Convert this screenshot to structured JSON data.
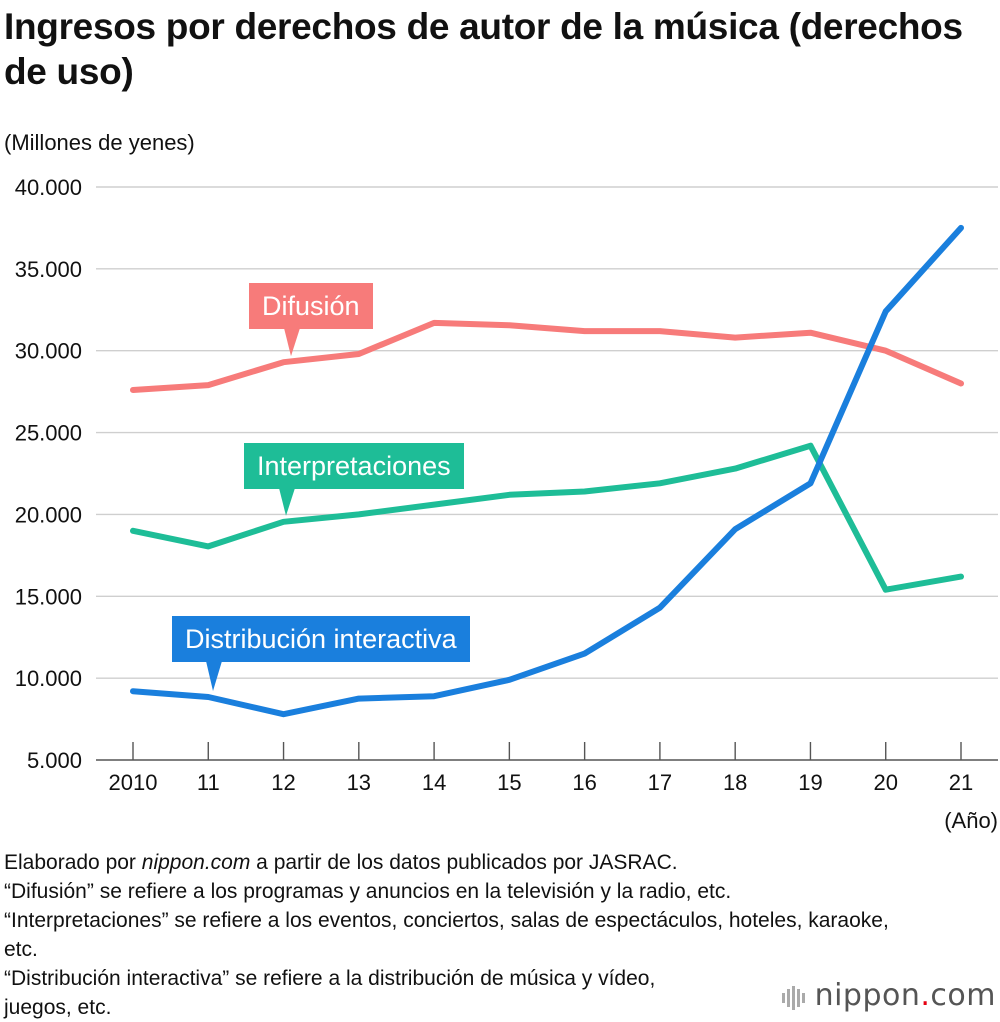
{
  "title": "Ingresos por derechos de autor de la música (derechos de uso)",
  "unit_label": "(Millones de yenes)",
  "notes": {
    "source_pre": "Elaborado por ",
    "source_site": "nippon.com",
    "source_post": " a partir de los datos publicados por JASRAC.",
    "line2": "“Difusión” se refiere a los programas y anuncios en la televisión y la radio, etc.",
    "line3": "“Interpretaciones” se refiere a los eventos, conciertos, salas de espectáculos, hoteles, karaoke, etc.",
    "line4": "“Distribución interactiva” se refiere a la distribución de música y vídeo, juegos, etc."
  },
  "logo": {
    "text": "nippon",
    "dot": ".",
    "suffix": "com"
  },
  "colors": {
    "difusion": "#f77b7a",
    "interpretaciones": "#1ebd97",
    "distribucion": "#1a7fdd",
    "grid": "#cfcfcf"
  },
  "chart_data": {
    "type": "line",
    "categories": [
      "2010",
      "11",
      "12",
      "13",
      "14",
      "15",
      "16",
      "17",
      "18",
      "19",
      "20",
      "21"
    ],
    "xlabel": "(Año)",
    "ylabel": "(Millones de yenes)",
    "ylim": [
      5000,
      40000
    ],
    "yticks": [
      5000,
      10000,
      15000,
      20000,
      25000,
      30000,
      35000,
      40000
    ],
    "ytick_labels": [
      "5.000",
      "10.000",
      "15.000",
      "20.000",
      "25.000",
      "30.000",
      "35.000",
      "40.000"
    ],
    "grid": true,
    "series": [
      {
        "name": "Difusión",
        "key": "difusion",
        "values": [
          27600,
          27900,
          29300,
          29800,
          31700,
          31550,
          31200,
          31200,
          30800,
          31100,
          30000,
          28000
        ]
      },
      {
        "name": "Interpretaciones",
        "key": "interpretaciones",
        "values": [
          19000,
          18050,
          19550,
          20000,
          20600,
          21200,
          21400,
          21900,
          22800,
          24200,
          15400,
          16200
        ]
      },
      {
        "name": "Distribución interactiva",
        "key": "distribucion",
        "values": [
          9200,
          8850,
          7800,
          8750,
          8900,
          9900,
          11500,
          14300,
          19100,
          21900,
          32400,
          37500
        ]
      }
    ]
  }
}
